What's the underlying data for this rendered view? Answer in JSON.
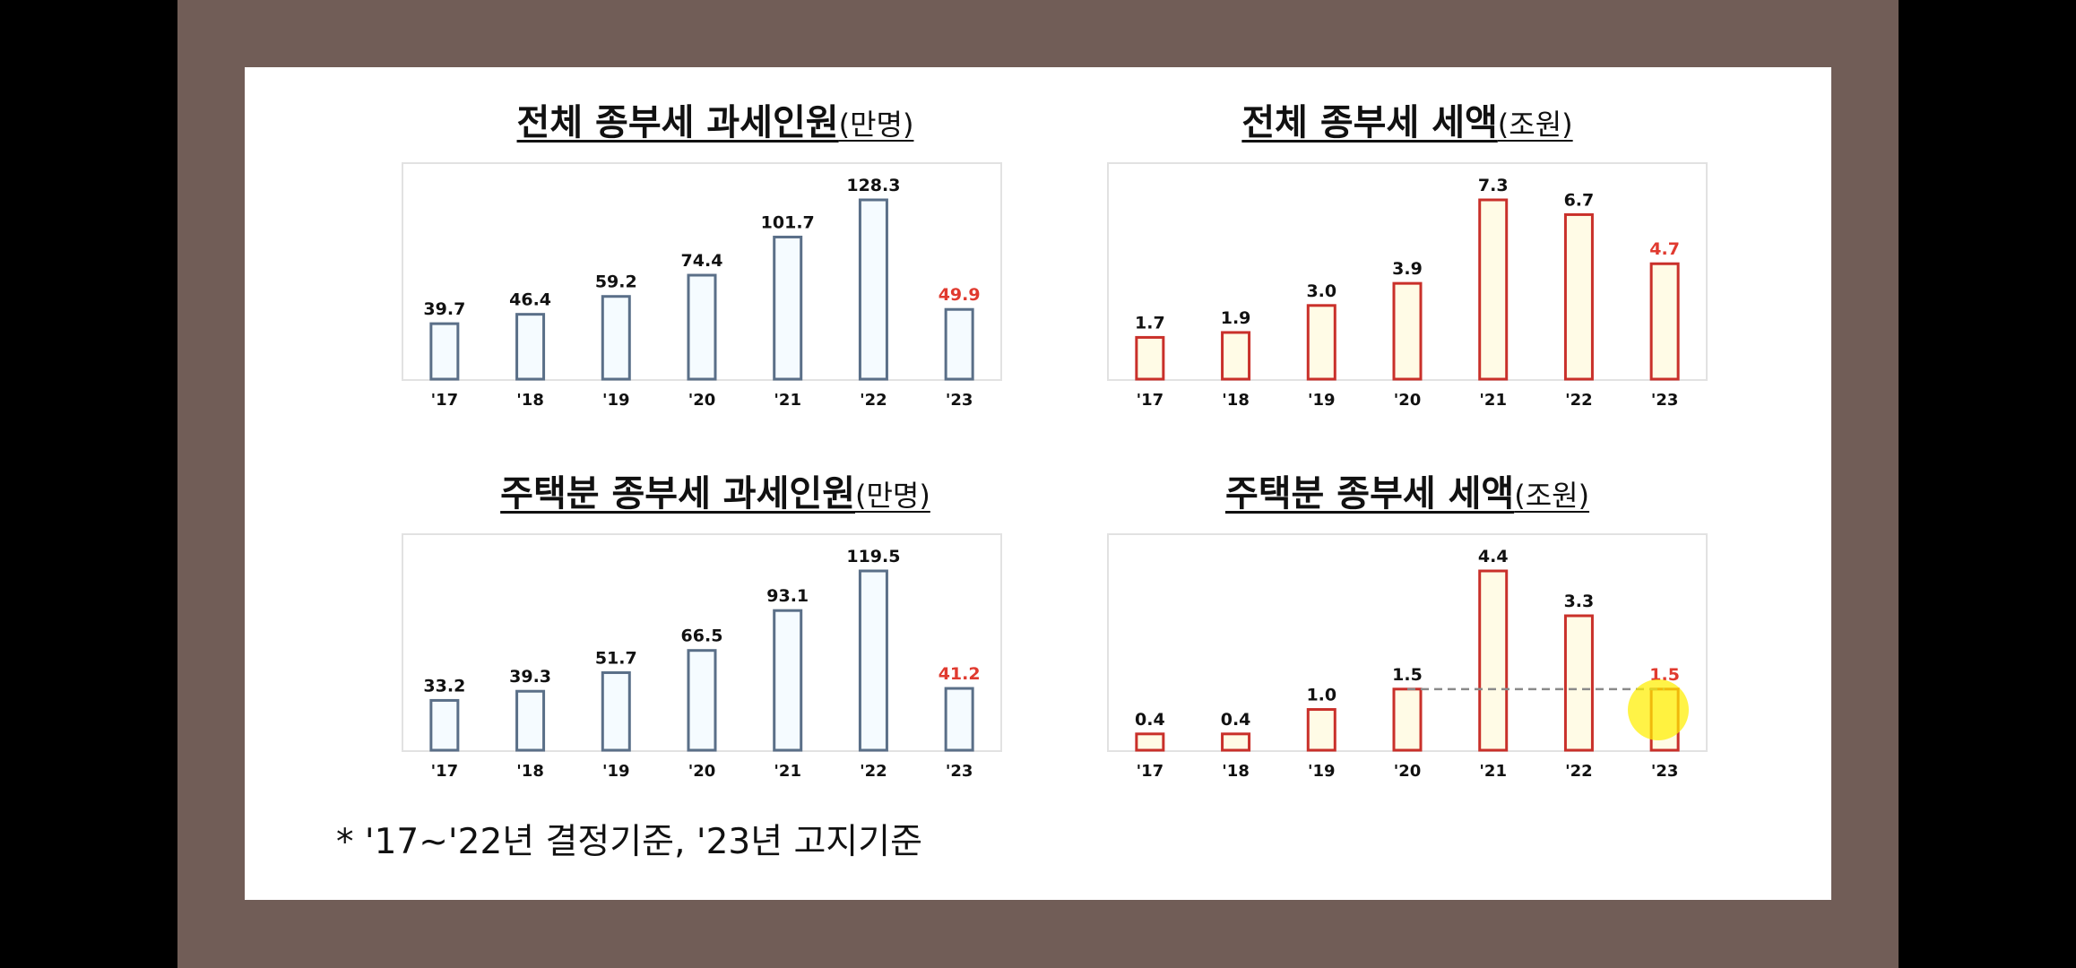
{
  "colors": {
    "frame": "#715d57",
    "slide": "#ffffff",
    "people_stroke": "#5a6f88",
    "people_fill": "#f5fbff",
    "tax_stroke": "#c9302a",
    "tax_fill": "#fffbe6",
    "highlight_label": "#e03a2f",
    "label": "#111111",
    "pointer": "#ffee00"
  },
  "footnote": "*  '17~'22년  결정기준,  '23년  고지기준",
  "chart_data": [
    {
      "type": "bar",
      "title": "전체  종부세  과세인원",
      "unit": "(만명)",
      "categories": [
        "'17",
        "'18",
        "'19",
        "'20",
        "'21",
        "'22",
        "'23"
      ],
      "values": [
        39.7,
        46.4,
        59.2,
        74.4,
        101.7,
        128.3,
        49.9
      ],
      "labels": [
        "39.7",
        "46.4",
        "59.2",
        "74.4",
        "101.7",
        "128.3",
        "49.9"
      ],
      "highlight_index": 6,
      "ylim": [
        0,
        128.3
      ],
      "style": "people"
    },
    {
      "type": "bar",
      "title": "전체  종부세  세액",
      "unit": "(조원)",
      "categories": [
        "'17",
        "'18",
        "'19",
        "'20",
        "'21",
        "'22",
        "'23"
      ],
      "values": [
        1.7,
        1.9,
        3.0,
        3.9,
        7.3,
        6.7,
        4.7
      ],
      "labels": [
        "1.7",
        "1.9",
        "3.0",
        "3.9",
        "7.3",
        "6.7",
        "4.7"
      ],
      "highlight_index": 6,
      "ylim": [
        0,
        7.3
      ],
      "style": "tax"
    },
    {
      "type": "bar",
      "title": "주택분  종부세  과세인원",
      "unit": "(만명)",
      "categories": [
        "'17",
        "'18",
        "'19",
        "'20",
        "'21",
        "'22",
        "'23"
      ],
      "values": [
        33.2,
        39.3,
        51.7,
        66.5,
        93.1,
        119.5,
        41.2
      ],
      "labels": [
        "33.2",
        "39.3",
        "51.7",
        "66.5",
        "93.1",
        "119.5",
        "41.2"
      ],
      "highlight_index": 6,
      "ylim": [
        0,
        119.5
      ],
      "style": "people"
    },
    {
      "type": "bar",
      "title": "주택분  종부세  세액",
      "unit": "(조원)",
      "categories": [
        "'17",
        "'18",
        "'19",
        "'20",
        "'21",
        "'22",
        "'23"
      ],
      "values": [
        0.4,
        0.4,
        1.0,
        1.5,
        4.4,
        3.3,
        1.5
      ],
      "labels": [
        "0.4",
        "0.4",
        "1.0",
        "1.5",
        "4.4",
        "3.3",
        "1.5"
      ],
      "highlight_index": 6,
      "ylim": [
        0,
        4.4
      ],
      "style": "tax",
      "reference_line": {
        "from_index": 3,
        "to_index": 6,
        "value": 1.5
      }
    }
  ]
}
